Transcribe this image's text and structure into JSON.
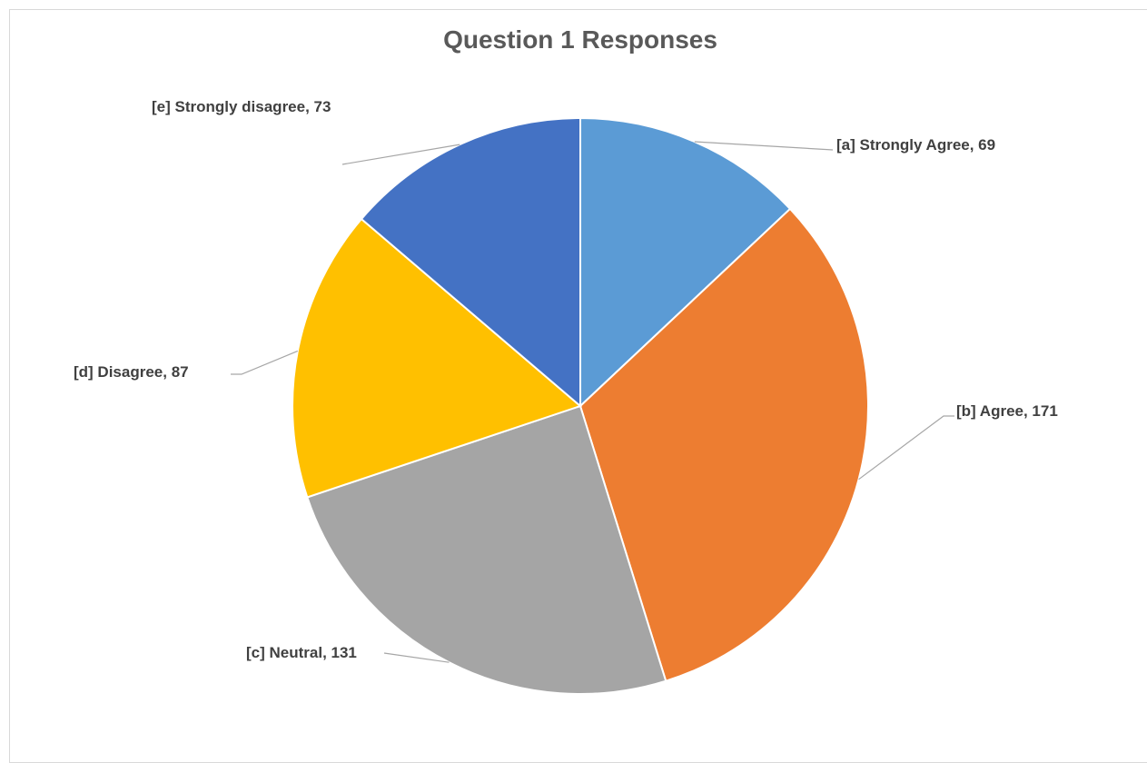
{
  "chart_data": {
    "type": "pie",
    "title": "Question 1 Responses",
    "categories": [
      "[a] Strongly Agree",
      "[b] Agree",
      "[c] Neutral",
      "[d] Disagree",
      "[e] Strongly disagree"
    ],
    "values": [
      69,
      171,
      131,
      87,
      73
    ],
    "labels": [
      "[a] Strongly Agree, 69",
      "[b] Agree, 171",
      "[c] Neutral, 131",
      "[d] Disagree, 87",
      "[e] Strongly disagree, 73"
    ],
    "colors": [
      "#5b9bd5",
      "#ed7d31",
      "#a5a5a5",
      "#ffc000",
      "#4472c4"
    ],
    "start_angle_deg": 0,
    "direction": "clockwise",
    "legend": "none",
    "data_labels": "outside-with-leader-lines"
  }
}
